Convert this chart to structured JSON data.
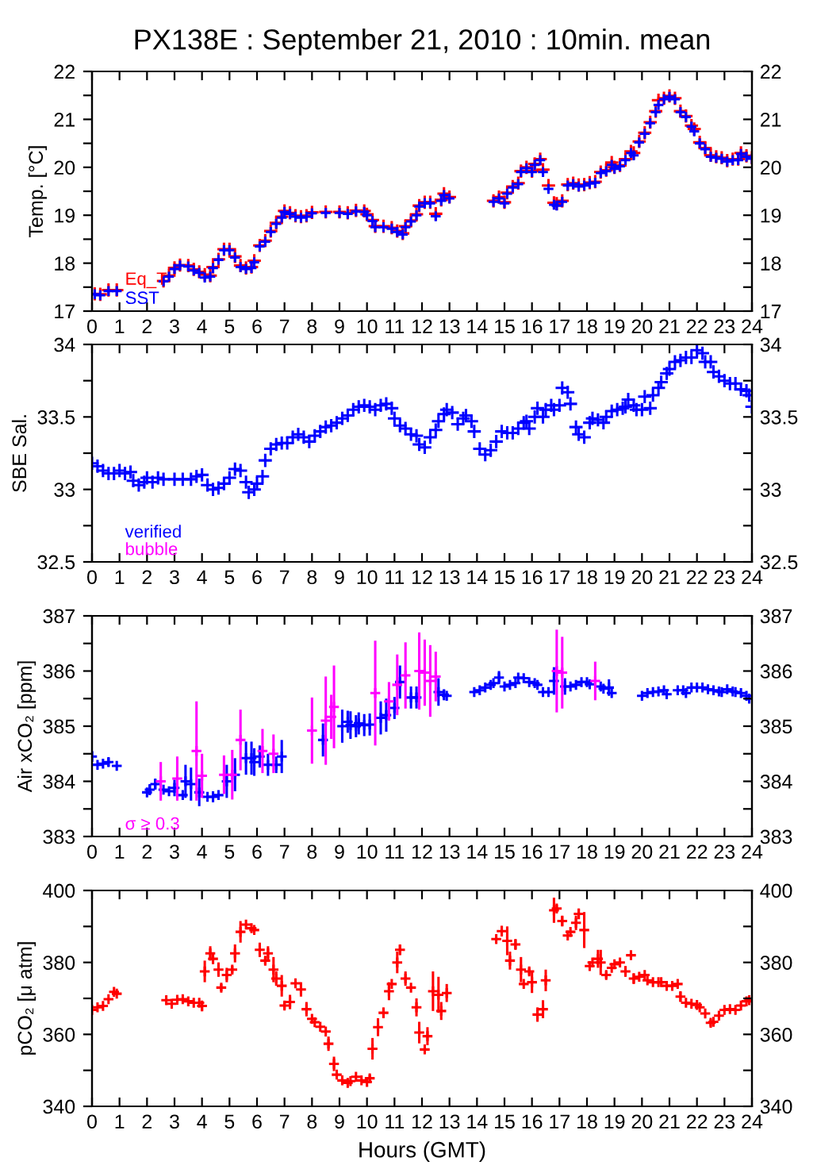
{
  "chart_data": [
    {
      "type": "scatter",
      "title": "PX138E : September 21, 2010 : 10min. mean",
      "ylabel": "Temp. [°C]",
      "marker": "cross",
      "legend": "bottom left",
      "grid": false,
      "xlim": [
        0,
        24
      ],
      "xticks": [
        0,
        1,
        2,
        3,
        4,
        5,
        6,
        7,
        8,
        9,
        10,
        11,
        12,
        13,
        14,
        15,
        16,
        17,
        18,
        19,
        20,
        21,
        22,
        23,
        24
      ],
      "ylim": [
        17,
        22
      ],
      "yticks": [
        17,
        {
          "value": 17.5,
          "label": null
        },
        18,
        {
          "value": 18.5,
          "label": null
        },
        19,
        {
          "value": 19.5,
          "label": null
        },
        20,
        {
          "value": 20.5,
          "label": null
        },
        21,
        {
          "value": 21.5,
          "label": null
        },
        22
      ],
      "y2lim": [
        17,
        22
      ],
      "y2ticks": [
        17,
        {
          "value": 17.5,
          "label": null
        },
        18,
        {
          "value": 18.5,
          "label": null
        },
        19,
        {
          "value": 19.5,
          "label": null
        },
        20,
        {
          "value": 20.5,
          "label": null
        },
        21,
        {
          "value": 21.5,
          "label": null
        },
        22
      ],
      "x": [
        0.1,
        0.3,
        0.6,
        0.9,
        2.6,
        2.8,
        3.0,
        3.2,
        3.5,
        3.7,
        3.9,
        4.1,
        4.3,
        4.4,
        4.6,
        4.8,
        5.0,
        5.2,
        5.4,
        5.6,
        5.8,
        5.9,
        6.1,
        6.3,
        6.5,
        6.7,
        6.9,
        7.0,
        7.2,
        7.4,
        7.6,
        7.8,
        8.0,
        8.5,
        9.0,
        9.3,
        9.6,
        9.9,
        10.0,
        10.2,
        10.3,
        10.6,
        10.9,
        11.1,
        11.3,
        11.4,
        11.6,
        11.8,
        11.9,
        12.1,
        12.3,
        12.5,
        12.7,
        12.8,
        13.0,
        14.6,
        14.8,
        15.0,
        15.1,
        15.3,
        15.5,
        15.6,
        15.8,
        16.0,
        16.1,
        16.3,
        16.4,
        16.6,
        16.8,
        16.9,
        17.1,
        17.3,
        17.5,
        17.7,
        17.9,
        18.1,
        18.3,
        18.5,
        18.7,
        18.9,
        19.0,
        19.2,
        19.4,
        19.6,
        19.7,
        19.9,
        20.1,
        20.3,
        20.5,
        20.6,
        20.8,
        21.0,
        21.2,
        21.4,
        21.6,
        21.8,
        21.9,
        22.1,
        22.3,
        22.5,
        22.7,
        22.9,
        23.1,
        23.3,
        23.5,
        23.6,
        23.8,
        24.0
      ],
      "series": [
        {
          "name": "Eq_T",
          "color": "#ff0000",
          "values": [
            17.36,
            17.35,
            17.44,
            17.44,
            17.63,
            17.74,
            17.9,
            17.96,
            17.95,
            17.87,
            17.82,
            17.76,
            17.74,
            17.92,
            18.08,
            18.29,
            18.29,
            18.14,
            17.95,
            17.9,
            17.92,
            18.05,
            18.37,
            18.47,
            18.67,
            18.84,
            18.97,
            19.09,
            19.05,
            18.99,
            18.97,
            18.99,
            19.06,
            19.07,
            19.07,
            19.05,
            19.1,
            19.09,
            19.02,
            18.9,
            18.77,
            18.77,
            18.74,
            18.67,
            18.62,
            18.77,
            18.89,
            19.02,
            19.2,
            19.27,
            19.27,
            19.03,
            19.32,
            19.45,
            19.38,
            19.3,
            19.38,
            19.27,
            19.47,
            19.6,
            19.67,
            19.92,
            20.0,
            19.92,
            20.07,
            20.17,
            19.95,
            19.62,
            19.26,
            19.24,
            19.3,
            19.64,
            19.67,
            19.63,
            19.64,
            19.68,
            19.7,
            19.9,
            19.94,
            20.1,
            20.0,
            20.04,
            20.17,
            20.33,
            20.3,
            20.54,
            20.72,
            20.94,
            21.17,
            21.4,
            21.44,
            21.49,
            21.44,
            21.17,
            21.07,
            20.87,
            20.8,
            20.52,
            20.4,
            20.25,
            20.22,
            20.2,
            20.14,
            20.17,
            20.17,
            20.3,
            20.24,
            20.2
          ]
        },
        {
          "name": "SST",
          "color": "#0000ff",
          "values": [
            17.35,
            17.33,
            17.42,
            17.42,
            17.62,
            17.72,
            17.88,
            17.95,
            17.93,
            17.85,
            17.8,
            17.7,
            17.72,
            17.9,
            18.07,
            18.27,
            18.27,
            18.12,
            17.92,
            17.88,
            17.9,
            18.02,
            18.35,
            18.45,
            18.65,
            18.82,
            18.95,
            19.07,
            19.03,
            18.97,
            18.95,
            18.97,
            19.04,
            19.05,
            19.05,
            19.03,
            19.08,
            19.07,
            19.0,
            18.88,
            18.75,
            18.75,
            18.72,
            18.65,
            18.6,
            18.75,
            18.87,
            19.0,
            19.18,
            19.25,
            19.25,
            18.98,
            19.3,
            19.42,
            19.35,
            19.28,
            19.35,
            19.25,
            19.45,
            19.58,
            19.65,
            19.9,
            19.98,
            19.9,
            20.05,
            20.15,
            19.9,
            19.55,
            19.22,
            19.2,
            19.28,
            19.62,
            19.65,
            19.6,
            19.62,
            19.66,
            19.68,
            19.88,
            19.92,
            20.05,
            19.97,
            20.02,
            20.15,
            20.3,
            20.25,
            20.52,
            20.7,
            20.92,
            21.15,
            21.3,
            21.42,
            21.47,
            21.42,
            21.15,
            21.05,
            20.85,
            20.75,
            20.5,
            20.38,
            20.22,
            20.2,
            20.18,
            20.12,
            20.15,
            20.15,
            20.28,
            20.22,
            20.18
          ]
        }
      ]
    },
    {
      "type": "scatter",
      "ylabel": "SBE Sal.",
      "marker": "cross",
      "legend": "bottom left",
      "grid": false,
      "xlim": [
        0,
        24
      ],
      "xticks": [
        0,
        1,
        2,
        3,
        4,
        5,
        6,
        7,
        8,
        9,
        10,
        11,
        12,
        13,
        14,
        15,
        16,
        17,
        18,
        19,
        20,
        21,
        22,
        23,
        24
      ],
      "ylim": [
        32.5,
        34
      ],
      "yticks": [
        32.5,
        {
          "value": 32.75,
          "label": null
        },
        33,
        {
          "value": 33.25,
          "label": null
        },
        33.5,
        {
          "value": 33.75,
          "label": null
        },
        34
      ],
      "y2lim": [
        32.5,
        34
      ],
      "y2ticks": [
        32.5,
        {
          "value": 32.75,
          "label": null
        },
        33,
        {
          "value": 33.25,
          "label": null
        },
        33.5,
        {
          "value": 33.75,
          "label": null
        },
        34
      ],
      "series": [
        {
          "name": "verified",
          "color": "#0000ff",
          "x": [
            0.0,
            0.2,
            0.4,
            0.6,
            0.8,
            1.0,
            1.2,
            1.4,
            1.5,
            1.7,
            1.9,
            2.0,
            2.2,
            2.4,
            2.6,
            3.0,
            3.3,
            3.6,
            3.8,
            4.0,
            4.2,
            4.4,
            4.6,
            4.8,
            5.0,
            5.2,
            5.4,
            5.6,
            5.7,
            5.9,
            6.0,
            6.2,
            6.3,
            6.5,
            6.7,
            6.9,
            7.1,
            7.3,
            7.5,
            7.7,
            7.9,
            8.1,
            8.3,
            8.5,
            8.7,
            8.9,
            9.1,
            9.3,
            9.5,
            9.7,
            9.9,
            10.1,
            10.3,
            10.5,
            10.7,
            10.9,
            11.0,
            11.2,
            11.4,
            11.6,
            11.8,
            11.9,
            12.1,
            12.3,
            12.5,
            12.6,
            12.8,
            12.9,
            13.1,
            13.3,
            13.5,
            13.6,
            13.8,
            13.9,
            14.1,
            14.3,
            14.5,
            14.7,
            14.9,
            15.1,
            15.3,
            15.5,
            15.7,
            15.8,
            15.9,
            16.1,
            16.2,
            16.4,
            16.5,
            16.7,
            16.8,
            17.0,
            17.1,
            17.3,
            17.4,
            17.6,
            17.7,
            17.9,
            18.1,
            18.2,
            18.4,
            18.6,
            18.7,
            18.9,
            19.1,
            19.3,
            19.4,
            19.5,
            19.7,
            19.8,
            20.0,
            20.1,
            20.3,
            20.4,
            20.6,
            20.7,
            20.9,
            21.0,
            21.2,
            21.4,
            21.6,
            21.8,
            22.0,
            22.2,
            22.3,
            22.5,
            22.6,
            22.8,
            23.0,
            23.2,
            23.4,
            23.6,
            23.8,
            23.9,
            24.0
          ],
          "values": [
            33.18,
            33.16,
            33.13,
            33.11,
            33.11,
            33.13,
            33.11,
            33.12,
            33.06,
            33.03,
            33.05,
            33.08,
            33.05,
            33.08,
            33.07,
            33.07,
            33.07,
            33.07,
            33.09,
            33.1,
            33.03,
            33.0,
            33.01,
            33.04,
            33.08,
            33.14,
            33.13,
            33.05,
            32.98,
            33.0,
            33.04,
            33.09,
            33.2,
            33.28,
            33.31,
            33.32,
            33.32,
            33.36,
            33.38,
            33.36,
            33.33,
            33.37,
            33.4,
            33.43,
            33.44,
            33.46,
            33.49,
            33.51,
            33.55,
            33.57,
            33.58,
            33.57,
            33.55,
            33.58,
            33.59,
            33.56,
            33.49,
            33.44,
            33.42,
            33.38,
            33.37,
            33.31,
            33.29,
            33.36,
            33.41,
            33.47,
            33.52,
            33.55,
            33.53,
            33.45,
            33.49,
            33.51,
            33.47,
            33.4,
            33.28,
            33.24,
            33.27,
            33.33,
            33.4,
            33.39,
            33.39,
            33.42,
            33.46,
            33.47,
            33.42,
            33.5,
            33.56,
            33.5,
            33.55,
            33.58,
            33.55,
            33.58,
            33.7,
            33.67,
            33.59,
            33.43,
            33.38,
            33.36,
            33.46,
            33.49,
            33.48,
            33.46,
            33.5,
            33.54,
            33.55,
            33.56,
            33.57,
            33.62,
            33.58,
            33.55,
            33.55,
            33.64,
            33.56,
            33.65,
            33.7,
            33.74,
            33.8,
            33.83,
            33.88,
            33.89,
            33.91,
            33.91,
            33.96,
            33.94,
            33.88,
            33.88,
            33.81,
            33.78,
            33.75,
            33.73,
            33.73,
            33.69,
            33.68,
            33.65,
            33.57
          ]
        },
        {
          "name": "bubble",
          "color": "#ff00ff"
        }
      ]
    },
    {
      "type": "scatter",
      "ylabel": "Air xCO₂ [ppm]",
      "marker": "cross",
      "legend": "bottom left",
      "grid": false,
      "xlim": [
        0,
        24
      ],
      "xticks": [
        0,
        1,
        2,
        3,
        4,
        5,
        6,
        7,
        8,
        9,
        10,
        11,
        12,
        13,
        14,
        15,
        16,
        17,
        18,
        19,
        20,
        21,
        22,
        23,
        24
      ],
      "ylim": [
        383,
        387
      ],
      "yticks": [
        383,
        {
          "value": 383.5,
          "label": null
        },
        384,
        {
          "value": 384.5,
          "label": null
        },
        385,
        {
          "value": 385.5,
          "label": null
        },
        386,
        {
          "value": 386.5,
          "label": null
        },
        387
      ],
      "y2lim": [
        383,
        387
      ],
      "y2ticks": [
        383,
        {
          "value": 383.5,
          "label": null
        },
        384,
        {
          "value": 384.5,
          "label": null
        },
        385,
        {
          "value": 385.5,
          "label": null
        },
        386,
        {
          "value": 386.5,
          "label": null
        },
        387
      ],
      "series": [
        {
          "color": "#0000ff",
          "x": [
            0.0,
            0.2,
            0.4,
            0.6,
            0.9,
            2.0,
            2.1,
            2.3,
            2.6,
            2.8,
            3.0,
            3.3,
            3.4,
            3.6,
            3.9,
            4.2,
            4.4,
            4.6,
            4.9,
            5.2,
            5.6,
            5.8,
            5.9,
            6.1,
            6.4,
            6.7,
            6.9,
            8.4,
            9.1,
            9.3,
            9.4,
            9.6,
            9.7,
            9.9,
            10.1,
            10.5,
            10.7,
            11.0,
            11.2,
            11.6,
            11.8,
            12.6,
            12.8,
            12.9,
            13.9,
            14.1,
            14.3,
            14.5,
            14.6,
            14.8,
            15.0,
            15.2,
            15.4,
            15.5,
            15.7,
            15.9,
            16.1,
            16.2,
            16.4,
            16.6,
            16.8,
            17.2,
            17.4,
            17.6,
            17.8,
            18.0,
            18.1,
            18.5,
            18.6,
            18.8,
            18.9,
            20.0,
            20.2,
            20.4,
            20.6,
            20.8,
            20.9,
            21.3,
            21.5,
            21.6,
            21.8,
            22.0,
            22.2,
            22.4,
            22.6,
            22.8,
            22.9,
            23.1,
            23.3,
            23.4,
            23.6,
            23.8,
            23.9
          ],
          "values": [
            384.45,
            384.3,
            384.32,
            384.35,
            384.28,
            383.8,
            383.85,
            383.95,
            383.85,
            383.82,
            383.88,
            383.75,
            384.0,
            383.95,
            383.8,
            383.72,
            383.72,
            383.75,
            384.0,
            384.12,
            384.42,
            384.42,
            384.35,
            384.45,
            384.3,
            384.3,
            384.45,
            384.75,
            385.0,
            385.08,
            385.02,
            385.0,
            385.05,
            385.02,
            385.03,
            385.15,
            385.2,
            385.33,
            385.8,
            385.52,
            385.52,
            385.62,
            385.57,
            385.55,
            385.62,
            385.65,
            385.7,
            385.75,
            385.78,
            385.88,
            385.72,
            385.75,
            385.78,
            385.88,
            385.87,
            385.8,
            385.78,
            385.75,
            385.62,
            385.62,
            385.82,
            385.72,
            385.72,
            385.75,
            385.8,
            385.8,
            385.76,
            385.72,
            385.68,
            385.7,
            385.6,
            385.55,
            385.6,
            385.62,
            385.63,
            385.65,
            385.58,
            385.65,
            385.65,
            385.6,
            385.7,
            385.7,
            385.7,
            385.67,
            385.65,
            385.63,
            385.62,
            385.67,
            385.63,
            385.62,
            385.6,
            385.55,
            385.5
          ],
          "errors": [
            0.1,
            null,
            null,
            0.08,
            null,
            null,
            0.1,
            0.1,
            null,
            null,
            0.15,
            null,
            0.3,
            0.3,
            0.25,
            null,
            0.1,
            null,
            0.3,
            0.3,
            0.3,
            0.3,
            0.25,
            0.2,
            0.2,
            0.15,
            0.3,
            0.3,
            0.3,
            0.2,
            0.25,
            0.2,
            0.2,
            0.2,
            0.2,
            0.3,
            0.3,
            0.2,
            0.3,
            0.2,
            0.2,
            0.25,
            0.1,
            null,
            null,
            null,
            null,
            null,
            null,
            0.12,
            null,
            null,
            null,
            null,
            null,
            null,
            null,
            null,
            null,
            null,
            0.25,
            0.15,
            null,
            null,
            null,
            null,
            null,
            null,
            null,
            0.15,
            null,
            null,
            null,
            null,
            null,
            null,
            null,
            null,
            null,
            null,
            null,
            null,
            null,
            null,
            null,
            null,
            null,
            null,
            null,
            null,
            null,
            null,
            null
          ]
        },
        {
          "name": "σ ≥ 0.3",
          "color": "#ff00ff",
          "x": [
            2.5,
            3.1,
            3.8,
            4.0,
            4.8,
            5.1,
            5.4,
            6.2,
            6.6,
            8.0,
            8.5,
            8.7,
            8.8,
            10.3,
            10.8,
            11.1,
            11.4,
            11.9,
            12.1,
            12.3,
            12.5,
            16.9,
            17.1,
            18.3
          ],
          "values": [
            384.0,
            384.05,
            384.55,
            384.1,
            384.12,
            384.12,
            384.75,
            384.55,
            384.5,
            384.92,
            385.1,
            385.17,
            385.35,
            385.6,
            385.45,
            385.75,
            385.92,
            386.0,
            385.97,
            385.82,
            385.9,
            386.0,
            385.97,
            385.82
          ],
          "errors": [
            0.35,
            0.4,
            0.9,
            0.4,
            0.35,
            0.45,
            0.55,
            0.4,
            0.35,
            0.6,
            0.8,
            0.4,
            0.75,
            0.95,
            0.35,
            0.55,
            0.6,
            0.7,
            0.6,
            0.65,
            0.45,
            0.75,
            0.65,
            0.35
          ]
        }
      ]
    },
    {
      "type": "scatter",
      "ylabel": "pCO₂ [μ atm]",
      "xlabel": "Hours (GMT)",
      "marker": "cross",
      "grid": false,
      "xlim": [
        0,
        24
      ],
      "xticks": [
        0,
        1,
        2,
        3,
        4,
        5,
        6,
        7,
        8,
        9,
        10,
        11,
        12,
        13,
        14,
        15,
        16,
        17,
        18,
        19,
        20,
        21,
        22,
        23,
        24
      ],
      "ylim": [
        340,
        400
      ],
      "yticks": [
        340,
        {
          "value": 350,
          "label": null
        },
        360,
        {
          "value": 370,
          "label": null
        },
        380,
        {
          "value": 390,
          "label": null
        },
        400
      ],
      "y2lim": [
        340,
        400
      ],
      "y2ticks": [
        340,
        {
          "value": 350,
          "label": null
        },
        360,
        {
          "value": 370,
          "label": null
        },
        380,
        {
          "value": 390,
          "label": null
        },
        400
      ],
      "series": [
        {
          "color": "#ff0000",
          "x": [
            0.0,
            0.2,
            0.4,
            0.6,
            0.8,
            0.9,
            2.7,
            2.9,
            3.1,
            3.3,
            3.5,
            3.7,
            3.9,
            4.0,
            4.1,
            4.3,
            4.4,
            4.6,
            4.7,
            4.9,
            5.1,
            5.2,
            5.4,
            5.6,
            5.8,
            5.9,
            6.1,
            6.3,
            6.4,
            6.6,
            6.7,
            6.9,
            7.0,
            7.2,
            7.4,
            7.6,
            7.8,
            8.0,
            8.1,
            8.3,
            8.5,
            8.6,
            8.8,
            8.9,
            9.1,
            9.3,
            9.4,
            9.6,
            9.8,
            10.0,
            10.1,
            10.2,
            10.4,
            10.6,
            10.8,
            10.9,
            11.1,
            11.2,
            11.4,
            11.6,
            11.8,
            11.9,
            12.1,
            12.2,
            12.4,
            12.6,
            12.7,
            12.9,
            14.7,
            14.9,
            15.1,
            15.2,
            15.4,
            15.6,
            15.7,
            15.9,
            16.0,
            16.2,
            16.4,
            16.5,
            16.8,
            16.9,
            17.1,
            17.3,
            17.4,
            17.6,
            17.7,
            17.9,
            18.1,
            18.2,
            18.4,
            18.5,
            18.7,
            18.9,
            19.0,
            19.2,
            19.4,
            19.6,
            19.7,
            19.9,
            20.1,
            20.2,
            20.4,
            20.6,
            20.7,
            20.9,
            21.1,
            21.3,
            21.4,
            21.6,
            21.8,
            22.0,
            22.1,
            22.3,
            22.5,
            22.6,
            22.8,
            23.0,
            23.2,
            23.4,
            23.6,
            23.8,
            23.9
          ],
          "values": [
            366.8,
            367.5,
            367.9,
            369.8,
            371.8,
            371.3,
            369.5,
            368.5,
            369.6,
            369.8,
            369.2,
            368.8,
            368.8,
            367.9,
            377.5,
            382.5,
            381,
            378,
            373,
            376.5,
            378,
            382.5,
            388.5,
            390.5,
            389.5,
            389,
            383.5,
            380.5,
            382.5,
            378,
            375.5,
            373.5,
            368,
            369,
            374.2,
            372.5,
            367,
            364.3,
            363.4,
            362.1,
            360.8,
            357.4,
            351.8,
            348.8,
            347.2,
            346.5,
            347,
            348.2,
            347.2,
            346.8,
            347.8,
            356,
            362,
            366,
            372,
            374,
            380,
            383.5,
            375.5,
            373,
            367.5,
            360.5,
            355.8,
            359.5,
            372,
            371,
            366.5,
            371.5,
            386.5,
            388.7,
            386,
            380.5,
            385,
            378,
            374,
            377.5,
            374.5,
            365.5,
            367,
            375,
            394.5,
            395,
            391.5,
            387.5,
            388.5,
            391,
            393.5,
            389,
            379,
            380,
            381,
            380,
            376.5,
            378.5,
            379.5,
            380,
            377.5,
            382,
            375.5,
            376,
            376.5,
            375,
            374.5,
            374.5,
            374.5,
            373.5,
            373.5,
            374,
            370.5,
            368.8,
            368.5,
            368.2,
            367.5,
            365.8,
            363.2,
            363.5,
            365.2,
            366.8,
            367,
            366.8,
            368,
            369.2,
            369.5
          ],
          "errors": [
            null,
            null,
            null,
            null,
            null,
            null,
            null,
            null,
            null,
            null,
            null,
            null,
            null,
            1.5,
            3,
            2,
            1.5,
            2,
            1,
            2,
            1,
            2.5,
            3,
            null,
            null,
            null,
            2,
            1,
            2,
            3.5,
            2,
            3,
            1,
            2,
            null,
            2,
            2,
            null,
            null,
            null,
            null,
            2,
            2,
            null,
            null,
            null,
            null,
            null,
            null,
            null,
            1,
            3,
            2.5,
            1.5,
            2.5,
            null,
            3,
            1.5,
            2,
            null,
            2.5,
            3,
            null,
            2.5,
            5.5,
            5,
            2.5,
            2.5,
            null,
            1.5,
            4,
            2.5,
            1.5,
            3.5,
            null,
            1,
            3,
            2,
            2.5,
            3,
            3.5,
            1,
            1.5,
            null,
            null,
            2,
            1.5,
            5,
            null,
            null,
            2.5,
            3.5,
            1,
            null,
            null,
            null,
            1.5,
            null,
            1.5,
            null,
            null,
            null,
            null,
            null,
            null,
            null,
            null,
            null,
            1.5,
            null,
            null,
            null,
            null,
            null,
            1,
            null,
            null,
            null,
            null,
            null,
            null,
            null,
            null
          ]
        }
      ]
    }
  ]
}
